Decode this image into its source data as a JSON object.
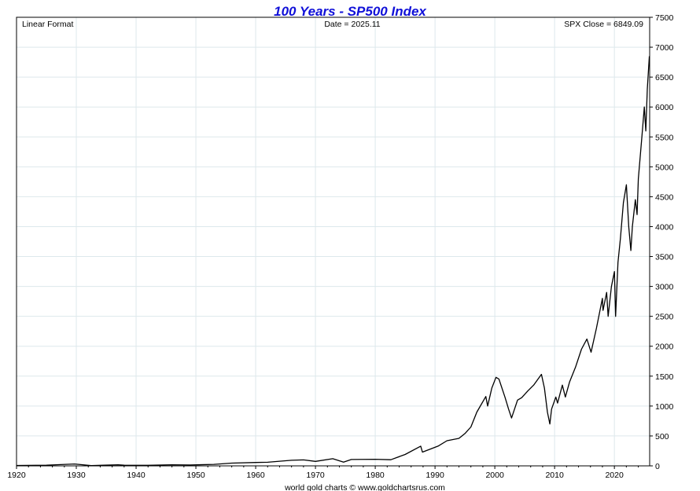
{
  "chart_data": {
    "type": "line",
    "title": "100 Years - SP500 Index",
    "format_label": "Linear Format",
    "date_label": "Date = 2025.11",
    "close_label": "SPX Close = 6849.09",
    "credit": "world gold charts © www.goldchartsrus.com",
    "xlabel": "",
    "ylabel": "",
    "xlim": [
      1920,
      2025.9
    ],
    "ylim": [
      0,
      7500
    ],
    "x_ticks": [
      1920,
      1930,
      1940,
      1950,
      1960,
      1970,
      1980,
      1990,
      2000,
      2010,
      2020
    ],
    "y_ticks": [
      0,
      500,
      1000,
      1500,
      2000,
      2500,
      3000,
      3500,
      4000,
      4500,
      5000,
      5500,
      6000,
      6500,
      7000,
      7500
    ],
    "grid": true,
    "colors": {
      "title": "#1010d8",
      "line": "#000000",
      "grid": "#dde8ec"
    },
    "series": [
      {
        "name": "SPX",
        "x": [
          1920,
          1925,
          1929.7,
          1932.5,
          1937,
          1938,
          1942,
          1946,
          1949,
          1953,
          1956,
          1960,
          1962,
          1966,
          1968,
          1970,
          1972.9,
          1974.7,
          1976,
          1980,
          1982.6,
          1985,
          1987.6,
          1987.9,
          1990.5,
          1992,
          1994,
          1995,
          1996,
          1997,
          1998.5,
          1998.8,
          1999.5,
          2000.2,
          2000.7,
          2001.7,
          2002.3,
          2002.8,
          2003.8,
          2004.5,
          2005.5,
          2006.5,
          2007.8,
          2008.3,
          2008.8,
          2009.2,
          2009.5,
          2010.2,
          2010.5,
          2011.3,
          2011.8,
          2012.5,
          2013.5,
          2014.5,
          2015.4,
          2016.1,
          2017,
          2018,
          2018.1,
          2018.7,
          2018.95,
          2019.5,
          2020,
          2020.2,
          2020.6,
          2021,
          2021.5,
          2022,
          2022.4,
          2022.75,
          2023,
          2023.5,
          2023.8,
          2024,
          2024.6,
          2025,
          2025.25,
          2025.5,
          2025.85
        ],
        "values": [
          7,
          12,
          31,
          5,
          18,
          11,
          9,
          18,
          15,
          25,
          46,
          57,
          60,
          93,
          100,
          75,
          119,
          63,
          107,
          110,
          102,
          190,
          330,
          230,
          330,
          420,
          460,
          540,
          650,
          900,
          1160,
          1000,
          1300,
          1480,
          1450,
          1150,
          950,
          800,
          1100,
          1140,
          1250,
          1350,
          1530,
          1300,
          900,
          700,
          950,
          1150,
          1050,
          1350,
          1150,
          1400,
          1650,
          1950,
          2120,
          1900,
          2300,
          2800,
          2600,
          2900,
          2500,
          3000,
          3250,
          2500,
          3400,
          3800,
          4400,
          4700,
          4000,
          3600,
          4000,
          4450,
          4200,
          4800,
          5500,
          6000,
          5600,
          6300,
          6849
        ]
      }
    ]
  }
}
